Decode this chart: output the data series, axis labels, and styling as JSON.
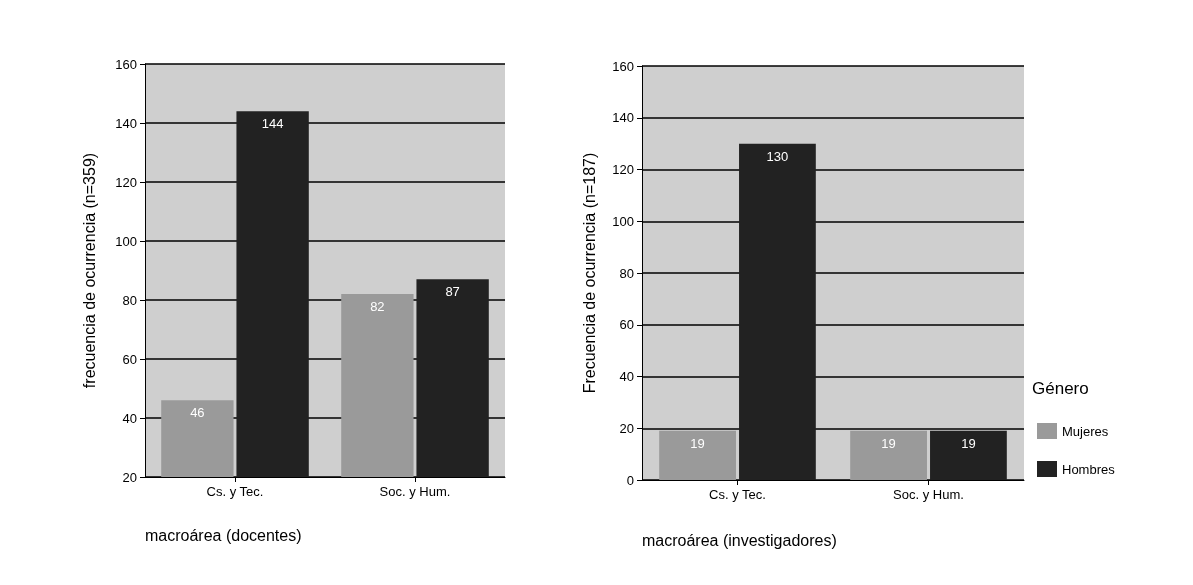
{
  "chart_data": [
    {
      "type": "bar",
      "xlabel": "macroárea (docentes)",
      "ylabel": "frecuencia de ocurrencia (n=359)",
      "categories": [
        "Cs. y Tec.",
        "Soc. y Hum."
      ],
      "series": [
        {
          "color": "#9a9a9a",
          "values": [
            46,
            82
          ]
        },
        {
          "color": "#222222",
          "values": [
            144,
            87
          ]
        }
      ],
      "ylim": [
        20,
        160
      ],
      "yticks": [
        20,
        40,
        60,
        80,
        100,
        120,
        140,
        160
      ],
      "grid": "y",
      "data_labels": true
    },
    {
      "type": "bar",
      "xlabel": "macroárea (investigadores)",
      "ylabel": "Frecuencia de ocurrencia (n=187)",
      "categories": [
        "Cs. y Tec.",
        "Soc. y Hum."
      ],
      "series": [
        {
          "name": "Mujeres",
          "color": "#9a9a9a",
          "values": [
            19,
            19
          ]
        },
        {
          "name": "Hombres",
          "color": "#222222",
          "values": [
            130,
            19
          ]
        }
      ],
      "ylim": [
        0,
        160
      ],
      "yticks": [
        0,
        20,
        40,
        60,
        80,
        100,
        120,
        140,
        160
      ],
      "grid": "y",
      "data_labels": true,
      "legend": "right",
      "legend_title": "Género"
    }
  ]
}
